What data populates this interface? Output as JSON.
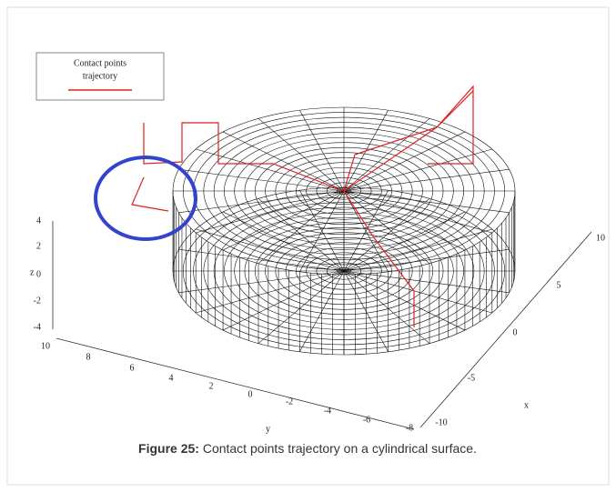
{
  "figure": {
    "legend": {
      "lines": [
        "Contact points",
        "trajectory"
      ]
    },
    "z_axis": {
      "label": "z",
      "ticks": [
        "4",
        "2",
        "0",
        "-2",
        "-4"
      ]
    },
    "y_axis": {
      "label": "y",
      "ticks": [
        "10",
        "8",
        "6",
        "4",
        "2",
        "0",
        "-2",
        "-4",
        "-6",
        "-8"
      ]
    },
    "x_axis": {
      "label": "x",
      "ticks": [
        "-10",
        "-5",
        "0",
        "5",
        "10"
      ]
    },
    "caption": {
      "label": "Figure 25:",
      "text": " Contact points trajectory on a cylindrical surface."
    }
  }
}
